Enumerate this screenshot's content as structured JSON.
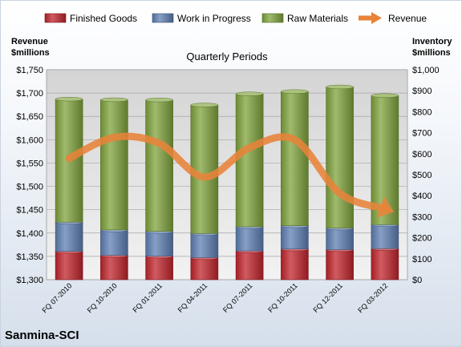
{
  "chart_data": {
    "type": "bar",
    "subtitle": "Quarterly Periods",
    "company": "Sanmina-SCI",
    "left_axis": {
      "label_lines": [
        "Revenue",
        "$millions"
      ],
      "min": 1300,
      "max": 1750,
      "step": 50,
      "prefix": "$"
    },
    "right_axis": {
      "label_lines": [
        "Inventory",
        "$millions"
      ],
      "min": 0,
      "max": 1000,
      "step": 100,
      "prefix": "$"
    },
    "categories": [
      "FQ 07-2010",
      "FQ 10-2010",
      "FQ 01-2011",
      "FQ 04-2011",
      "FQ 07-2011",
      "FQ 10-2011",
      "FQ 12-2011",
      "FQ 03-2012"
    ],
    "stacked": true,
    "series": [
      {
        "name": "Finished Goods",
        "axis": "right",
        "color": "#c0242c",
        "values": [
          135,
          116,
          112,
          105,
          137,
          146,
          143,
          148
        ]
      },
      {
        "name": "Work in Progress",
        "axis": "right",
        "color": "#5e7fb3",
        "values": [
          139,
          121,
          118,
          115,
          115,
          111,
          103,
          114
        ]
      },
      {
        "name": "Raw Materials",
        "axis": "right",
        "color": "#7fa33c",
        "values": [
          586,
          620,
          626,
          612,
          633,
          639,
          672,
          615
        ]
      }
    ],
    "revenue": {
      "name": "Revenue",
      "axis": "left",
      "color": "#e8833a",
      "values": [
        1560,
        1605,
        1592,
        1520,
        1583,
        1600,
        1485,
        1452
      ]
    },
    "grid": true,
    "legend": "top"
  }
}
